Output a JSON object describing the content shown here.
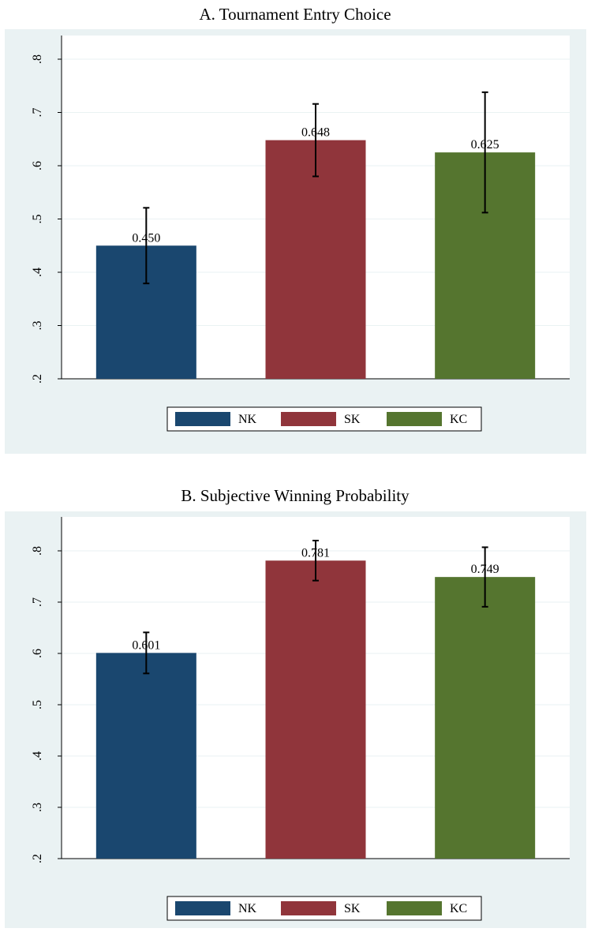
{
  "chart_data": [
    {
      "type": "bar",
      "title": "A. Tournament Entry Choice",
      "series": [
        {
          "name": "NK",
          "color": "#1a476f",
          "values": [
            0.45
          ],
          "errors": [
            0.071
          ],
          "value_labels": [
            "0.450"
          ]
        },
        {
          "name": "SK",
          "color": "#90353b",
          "values": [
            0.648
          ],
          "errors": [
            0.068
          ],
          "value_labels": [
            "0.648"
          ]
        },
        {
          "name": "KC",
          "color": "#55752f",
          "values": [
            0.625
          ],
          "errors": [
            0.113
          ],
          "value_labels": [
            "0.625"
          ]
        }
      ],
      "ylim": [
        0.2,
        0.8
      ],
      "yticks": [
        {
          "value": 0.2,
          "label": ".2"
        },
        {
          "value": 0.3,
          "label": ".3"
        },
        {
          "value": 0.4,
          "label": ".4"
        },
        {
          "value": 0.5,
          "label": ".5"
        },
        {
          "value": 0.6,
          "label": ".6"
        },
        {
          "value": 0.7,
          "label": ".7"
        },
        {
          "value": 0.8,
          "label": ".8"
        }
      ],
      "grid": true,
      "legend": "bottom"
    },
    {
      "type": "bar",
      "title": "B. Subjective Winning Probability",
      "series": [
        {
          "name": "NK",
          "color": "#1a476f",
          "values": [
            0.601
          ],
          "errors": [
            0.04
          ],
          "value_labels": [
            "0.601"
          ]
        },
        {
          "name": "SK",
          "color": "#90353b",
          "values": [
            0.781
          ],
          "errors": [
            0.039
          ],
          "value_labels": [
            "0.781"
          ]
        },
        {
          "name": "KC",
          "color": "#55752f",
          "values": [
            0.749
          ],
          "errors": [
            0.058
          ],
          "value_labels": [
            "0.749"
          ]
        }
      ],
      "ylim": [
        0.2,
        0.8
      ],
      "yticks": [
        {
          "value": 0.2,
          "label": ".2"
        },
        {
          "value": 0.3,
          "label": ".3"
        },
        {
          "value": 0.4,
          "label": ".4"
        },
        {
          "value": 0.5,
          "label": ".5"
        },
        {
          "value": 0.6,
          "label": ".6"
        },
        {
          "value": 0.7,
          "label": ".7"
        },
        {
          "value": 0.8,
          "label": ".8"
        }
      ],
      "grid": true,
      "legend": "bottom"
    }
  ]
}
